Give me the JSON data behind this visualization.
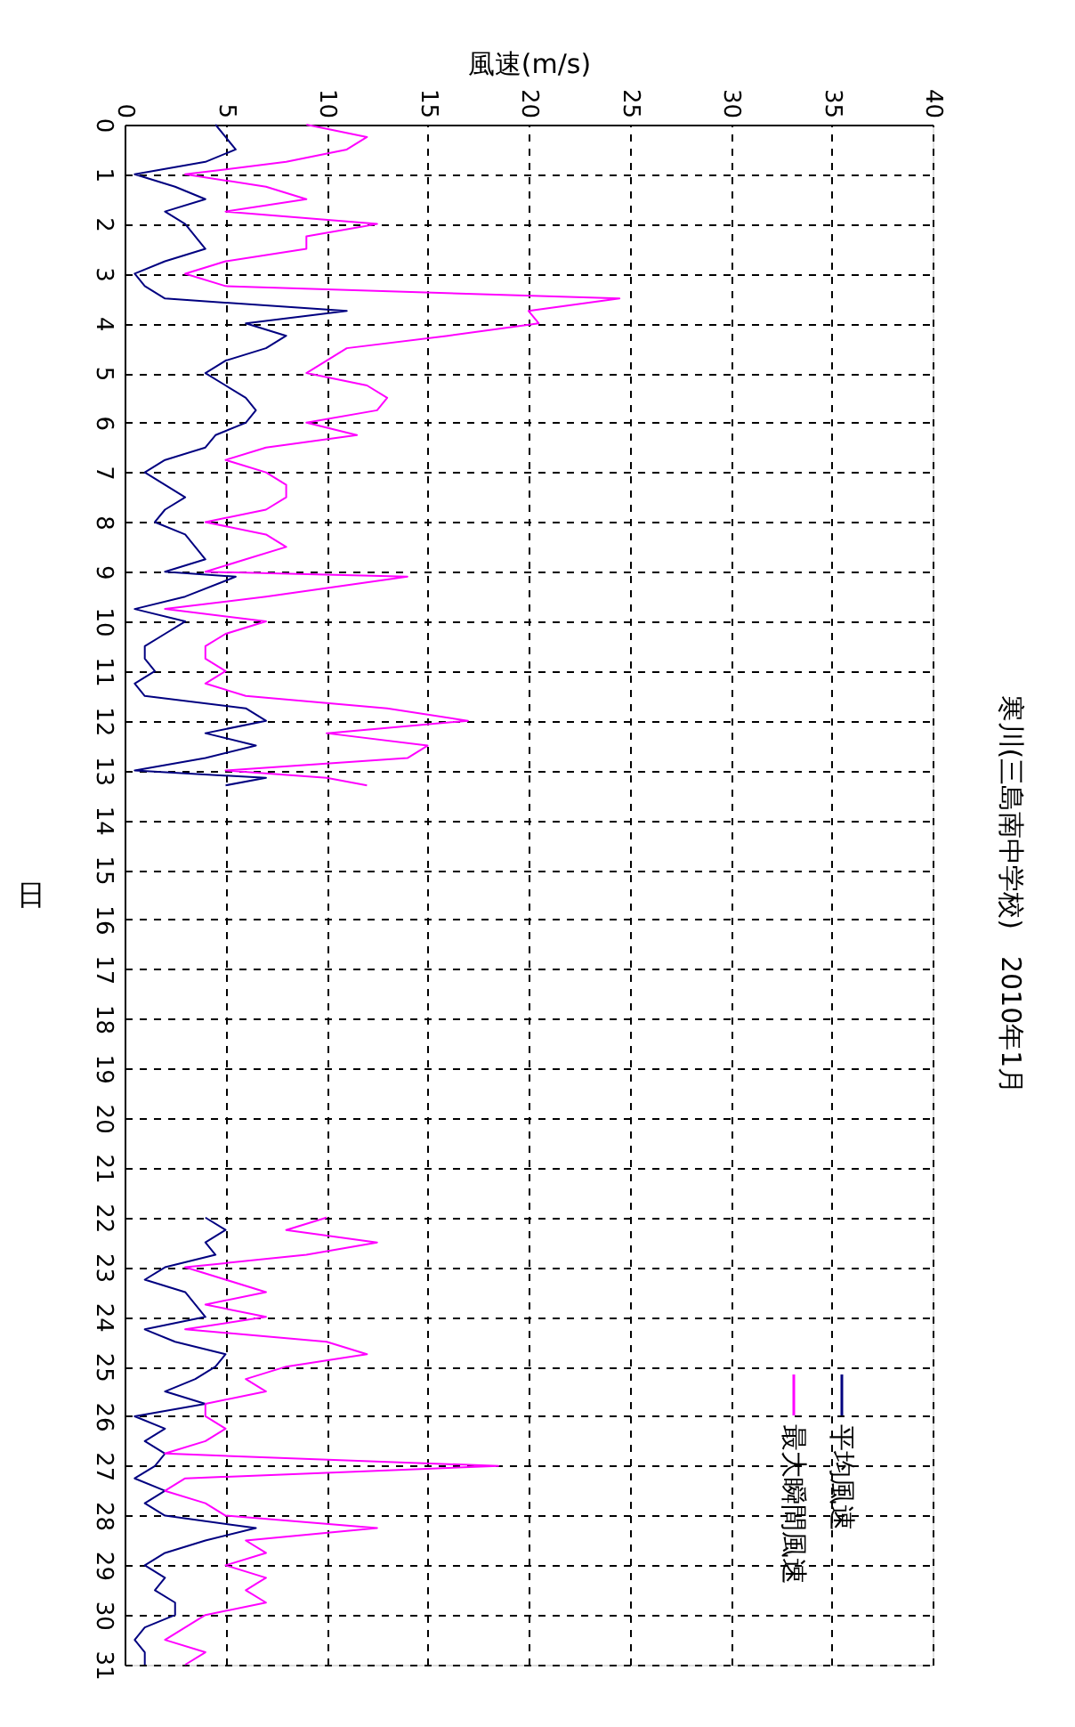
{
  "chart_data": {
    "type": "line",
    "orientation": "horizontal",
    "title": "寒川(三島南中学校)　2010年1月",
    "xlabel": "風速(m/s)",
    "ylabel": "日",
    "x": [
      0,
      0.25,
      0.5,
      0.75,
      1,
      1.25,
      1.5,
      1.75,
      2,
      2.25,
      2.5,
      2.75,
      3,
      3.25,
      3.5,
      3.75,
      4,
      4.25,
      4.5,
      4.75,
      5,
      5.25,
      5.5,
      5.75,
      6,
      6.25,
      6.5,
      6.75,
      7,
      7.25,
      7.5,
      7.75,
      8,
      8.25,
      8.5,
      8.75,
      9,
      9.1,
      9.5,
      9.75,
      10,
      10.25,
      10.5,
      10.75,
      11,
      11.25,
      11.5,
      11.75,
      12,
      12.25,
      12.5,
      12.75,
      13,
      13.15,
      13.3,
      17,
      22,
      22.25,
      22.5,
      22.75,
      23,
      23.25,
      23.5,
      23.75,
      24,
      24.25,
      24.5,
      24.75,
      25,
      25.25,
      25.5,
      25.75,
      26,
      26.25,
      26.5,
      26.75,
      27,
      27.25,
      27.5,
      27.75,
      28,
      28.25,
      28.5,
      28.75,
      29,
      29.25,
      29.5,
      29.75,
      30,
      30.25,
      30.5,
      30.75,
      31
    ],
    "series": [
      {
        "name": "平均風速",
        "color": "#000080",
        "values": [
          4.5,
          5,
          5.5,
          4,
          0.5,
          2.5,
          4,
          2,
          3,
          3.5,
          4,
          2,
          0.5,
          1,
          2,
          11,
          6,
          8,
          7,
          5,
          4,
          5,
          6,
          6.5,
          6,
          4.5,
          4,
          2,
          1,
          2,
          3,
          2,
          1.5,
          3,
          3.5,
          4,
          2,
          5.5,
          3,
          0.5,
          3,
          2,
          1,
          1,
          1.5,
          0.5,
          1,
          6,
          7,
          4,
          6.5,
          4,
          0.5,
          7,
          5,
          null,
          4,
          5,
          4,
          4.5,
          2,
          1,
          3,
          3.5,
          4,
          1,
          2.5,
          5,
          4.5,
          3.5,
          2,
          4,
          0.5,
          2,
          1,
          2,
          1.5,
          0.5,
          2,
          1,
          2,
          6.5,
          4,
          2,
          1,
          2,
          1.5,
          2.5,
          2.5,
          1,
          0.5,
          1,
          1
        ]
      },
      {
        "name": "最大瞬間風速",
        "color": "#ff00ff",
        "values": [
          9,
          12,
          11,
          8,
          3,
          7,
          9,
          5,
          12.5,
          9,
          9,
          5,
          3,
          5,
          24.5,
          20,
          20.5,
          16,
          11,
          10,
          9,
          12,
          13,
          12.5,
          9,
          11.5,
          7,
          5,
          7,
          8,
          8,
          7,
          4,
          7,
          8,
          6,
          4,
          14,
          7,
          2,
          7,
          5,
          4,
          4,
          5,
          4,
          6,
          13,
          17,
          10,
          15,
          14,
          5,
          10,
          12,
          null,
          10,
          8,
          12.5,
          9,
          3,
          5,
          7,
          4,
          7,
          3,
          10,
          12,
          8,
          6,
          7,
          4,
          4,
          5,
          4,
          2,
          18.5,
          3,
          2,
          4,
          5,
          12.5,
          6,
          7,
          5,
          7,
          6,
          7,
          4,
          3,
          2,
          4,
          3
        ]
      }
    ],
    "ylim": [
      31,
      0
    ],
    "yticks": [
      0,
      1,
      2,
      3,
      4,
      5,
      6,
      7,
      8,
      9,
      10,
      11,
      12,
      13,
      14,
      15,
      16,
      17,
      18,
      19,
      20,
      21,
      22,
      23,
      24,
      25,
      26,
      27,
      28,
      29,
      30,
      31
    ],
    "xlim": [
      0,
      40
    ],
    "xticks": [
      0,
      5,
      10,
      15,
      20,
      25,
      30,
      35,
      40
    ],
    "grid": true,
    "legend": "bottom right"
  }
}
